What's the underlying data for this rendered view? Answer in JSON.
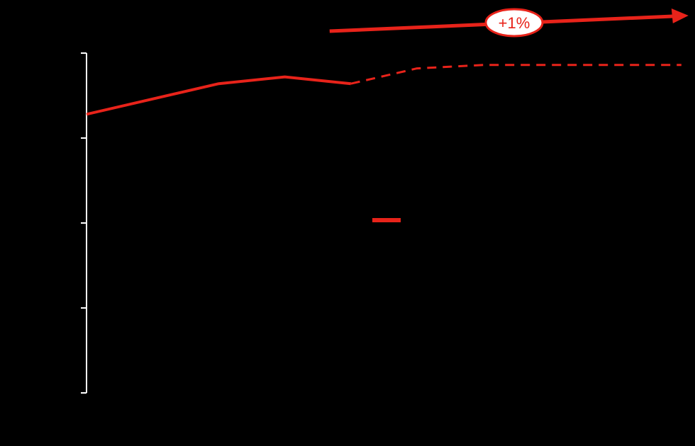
{
  "colors": {
    "background": "#000000",
    "series": "#e8231a",
    "axis": "#ffffff",
    "callout_fill": "#ffffff",
    "callout_text": "#e8231a"
  },
  "chart_data": {
    "type": "line",
    "title": "",
    "xlabel": "",
    "ylabel": "",
    "x": [
      0,
      1,
      2,
      3,
      4,
      5,
      6,
      7,
      8,
      9
    ],
    "ylim": [
      0,
      100
    ],
    "yticks": [
      0,
      25,
      50,
      75,
      100
    ],
    "series": [
      {
        "style": "solid",
        "x": [
          0,
          2,
          3,
          4
        ],
        "values": [
          82,
          91,
          93,
          91
        ]
      },
      {
        "style": "dashed",
        "x": [
          4,
          5,
          6,
          7,
          8,
          9
        ],
        "values": [
          91,
          95.5,
          96.5,
          96.5,
          96.5,
          96.5
        ]
      }
    ],
    "trend_arrow": {
      "label": "+1%",
      "from_x": 4,
      "to_x": 9
    },
    "legend": {
      "placement": "center",
      "entries": [
        {
          "style": "solid"
        }
      ]
    },
    "grid": false
  }
}
